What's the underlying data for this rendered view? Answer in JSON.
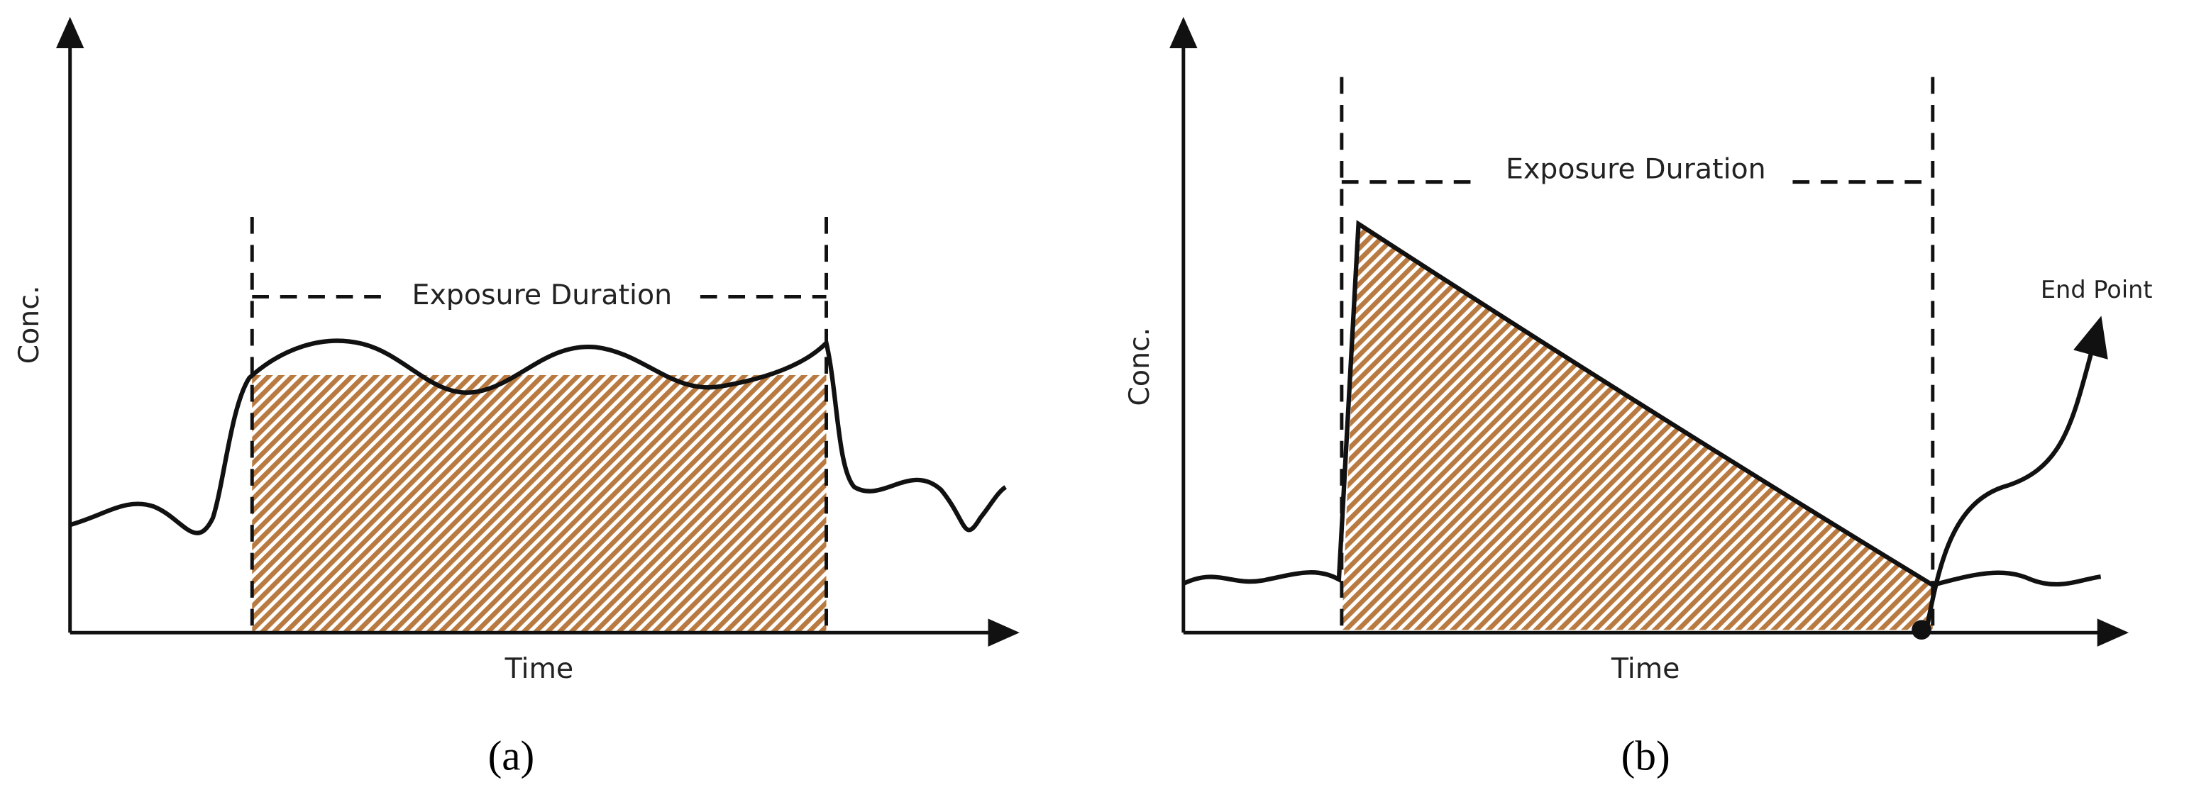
{
  "panels": [
    {
      "y_label": "Conc.",
      "x_label": "Time",
      "span_label": "Exposure Duration",
      "caption": "(a)"
    },
    {
      "y_label": "Conc.",
      "x_label": "Time",
      "span_label": "Exposure Duration",
      "end_label": "End Point",
      "caption": "(b)"
    }
  ]
}
